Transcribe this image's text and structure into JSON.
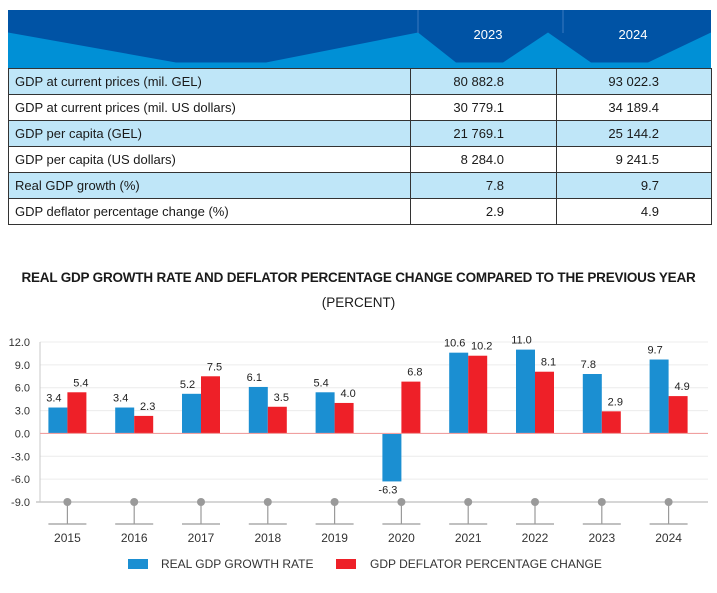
{
  "table": {
    "columns": [
      "",
      "2023",
      "2024"
    ],
    "rows": [
      {
        "label": "GDP at current prices (mil. GEL)",
        "y2023": "80 882.8",
        "y2024": "93 022.3"
      },
      {
        "label": "GDP at current prices (mil. US dollars)",
        "y2023": "30 779.1",
        "y2024": "34 189.4"
      },
      {
        "label": "GDP per capita (GEL)",
        "y2023": "21 769.1",
        "y2024": "25 144.2"
      },
      {
        "label": "GDP per capita (US dollars)",
        "y2023": "8 284.0",
        "y2024": "9 241.5"
      },
      {
        "label": "Real GDP growth (%)",
        "y2023": "7.8",
        "y2024": "9.7"
      },
      {
        "label": "GDP deflator percentage change  (%)",
        "y2023": "2.9",
        "y2024": "4.9"
      }
    ]
  },
  "colors": {
    "header_dark": "#0053a5",
    "header_light": "#0090d6",
    "row_alt": "#bfe6f8",
    "series_blue": "#1b8fd2",
    "series_red": "#ee2028",
    "axis": "#c8c8c8",
    "zero_line": "#f0a0a0",
    "marker": "#9a9a9a"
  },
  "chart_data": {
    "type": "bar",
    "title": "REAL GDP GROWTH RATE AND DEFLATOR PERCENTAGE CHANGE COMPARED TO THE PREVIOUS YEAR",
    "subtitle": "(PERCENT)",
    "xlabel": "",
    "ylabel": "",
    "categories": [
      "2015",
      "2016",
      "2017",
      "2018",
      "2019",
      "2020",
      "2021",
      "2022",
      "2023",
      "2024"
    ],
    "series": [
      {
        "name": "REAL GDP GROWTH RATE",
        "values": [
          3.4,
          3.4,
          5.2,
          6.1,
          5.4,
          -6.3,
          10.6,
          11.0,
          7.8,
          9.7
        ]
      },
      {
        "name": "GDP DEFLATOR PERCENTAGE CHANGE",
        "values": [
          5.4,
          2.3,
          7.5,
          3.5,
          4.0,
          6.8,
          10.2,
          8.1,
          2.9,
          4.9
        ]
      }
    ],
    "ylim": [
      -9.0,
      12.0
    ],
    "yticks": [
      "12.0",
      "9.0",
      "6.0",
      "3.0",
      "0.0",
      "-3.0",
      "-6.0",
      "-9.0"
    ],
    "ytick_values": [
      12,
      9,
      6,
      3,
      0,
      -3,
      -6,
      -9
    ],
    "grid": true,
    "legend_position": "bottom"
  }
}
